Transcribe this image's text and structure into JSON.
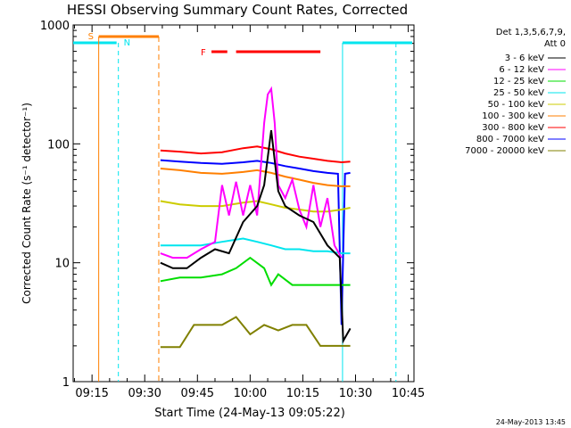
{
  "chart_data": {
    "type": "line",
    "title": "HESSI Observing Summary Count Rates, Corrected",
    "xlabel": "Start Time (24-May-13 09:05:22)",
    "ylabel": "Corrected Count Rate (s⁻¹ detector⁻¹)",
    "yscale": "log",
    "ylim": [
      1,
      1000
    ],
    "xlim_minutes": [
      9.63,
      106.63
    ],
    "x_ticks": [
      "09:15",
      "09:30",
      "09:45",
      "10:00",
      "10:15",
      "10:30",
      "10:45"
    ],
    "x_tick_minutes": [
      15,
      30,
      45,
      60,
      75,
      90,
      105
    ],
    "y_ticks": [
      "1",
      "10",
      "100",
      "1000"
    ],
    "y_tick_values": [
      1,
      10,
      100,
      1000
    ],
    "legend_header": [
      "Det 1,3,5,6,7,9,",
      "Att 0"
    ],
    "grid": false,
    "legend_position": "right",
    "series": [
      {
        "name": "3 - 6 keV",
        "color": "#000000",
        "minutes": [
          34.5,
          38,
          42,
          46,
          50,
          54,
          58,
          62,
          64,
          66,
          68,
          70,
          74,
          78,
          82,
          85.5,
          86.5,
          88.5
        ],
        "values": [
          10,
          9,
          9,
          11,
          13,
          12,
          22,
          30,
          45,
          130,
          40,
          30,
          25,
          22,
          14,
          11,
          2.2,
          2.8
        ]
      },
      {
        "name": "6 - 12 keV",
        "color": "#ff00ff",
        "minutes": [
          34.5,
          38,
          42,
          46,
          50,
          52,
          54,
          56,
          58,
          60,
          62,
          64,
          65,
          66,
          67,
          68,
          70,
          72,
          74,
          76,
          78,
          80,
          82,
          84,
          86
        ],
        "values": [
          12,
          11,
          11,
          13,
          15,
          45,
          25,
          48,
          25,
          45,
          25,
          150,
          260,
          290,
          150,
          45,
          35,
          50,
          28,
          20,
          45,
          20,
          35,
          14,
          11
        ]
      },
      {
        "name": "12 - 25 keV",
        "color": "#00dd00",
        "minutes": [
          34.5,
          40,
          46,
          52,
          56,
          60,
          64,
          66,
          68,
          72,
          76,
          80,
          84,
          86,
          88.5
        ],
        "values": [
          7,
          7.5,
          7.5,
          8,
          9,
          11,
          9,
          6.5,
          8,
          6.5,
          6.5,
          6.5,
          6.5,
          6.5,
          6.5
        ]
      },
      {
        "name": "25 - 50 keV",
        "color": "#00e5ee",
        "minutes": [
          34.5,
          40,
          46,
          52,
          58,
          62,
          66,
          70,
          74,
          78,
          82,
          86,
          88.5
        ],
        "values": [
          14,
          14,
          14,
          15,
          16,
          15,
          14,
          13,
          13,
          12.5,
          12.5,
          12,
          12
        ]
      },
      {
        "name": "50 - 100 keV",
        "color": "#cccc00",
        "minutes": [
          34.5,
          40,
          46,
          52,
          58,
          62,
          66,
          70,
          74,
          78,
          82,
          86,
          88.5
        ],
        "values": [
          33,
          31,
          30,
          30,
          32,
          33,
          31,
          29,
          28,
          27,
          27,
          28,
          29
        ]
      },
      {
        "name": "100 - 300 keV",
        "color": "#ff7f00",
        "minutes": [
          34.5,
          40,
          46,
          52,
          58,
          62,
          66,
          70,
          74,
          78,
          82,
          86,
          88.5
        ],
        "values": [
          62,
          60,
          57,
          56,
          58,
          60,
          57,
          53,
          50,
          47,
          45,
          44,
          44
        ]
      },
      {
        "name": "300 - 800 keV",
        "color": "#ff0000",
        "minutes": [
          34.5,
          40,
          46,
          52,
          58,
          62,
          66,
          70,
          74,
          78,
          82,
          86,
          88.5
        ],
        "values": [
          88,
          86,
          83,
          85,
          92,
          95,
          90,
          83,
          78,
          75,
          72,
          70,
          71
        ]
      },
      {
        "name": "800 - 7000 keV",
        "color": "#0000ff",
        "minutes": [
          34.5,
          40,
          46,
          52,
          58,
          62,
          66,
          70,
          74,
          78,
          82,
          85,
          86,
          87,
          88.5
        ],
        "values": [
          73,
          71,
          69,
          68,
          70,
          72,
          69,
          65,
          62,
          59,
          57,
          56,
          3,
          56,
          57
        ]
      },
      {
        "name": "7000 - 20000 keV",
        "color": "#808000",
        "minutes": [
          34.5,
          40,
          44,
          48,
          52,
          56,
          60,
          64,
          68,
          72,
          76,
          80,
          84,
          88.5
        ],
        "values": [
          1.95,
          1.95,
          3,
          3,
          3,
          3.5,
          2.5,
          3,
          2.7,
          3,
          3,
          2,
          2,
          2
        ]
      }
    ],
    "annotations": [
      {
        "label": "S",
        "color": "#ff7f00",
        "start_minute": 16.9,
        "end_minute": 34.0
      },
      {
        "label": "N",
        "color": "#00e5ee",
        "start_minute": 9.63,
        "end_minute": 22.5
      },
      {
        "label": "F",
        "color": "#ff0000"
      }
    ],
    "footer_date": "24-May-2013 13:45"
  }
}
